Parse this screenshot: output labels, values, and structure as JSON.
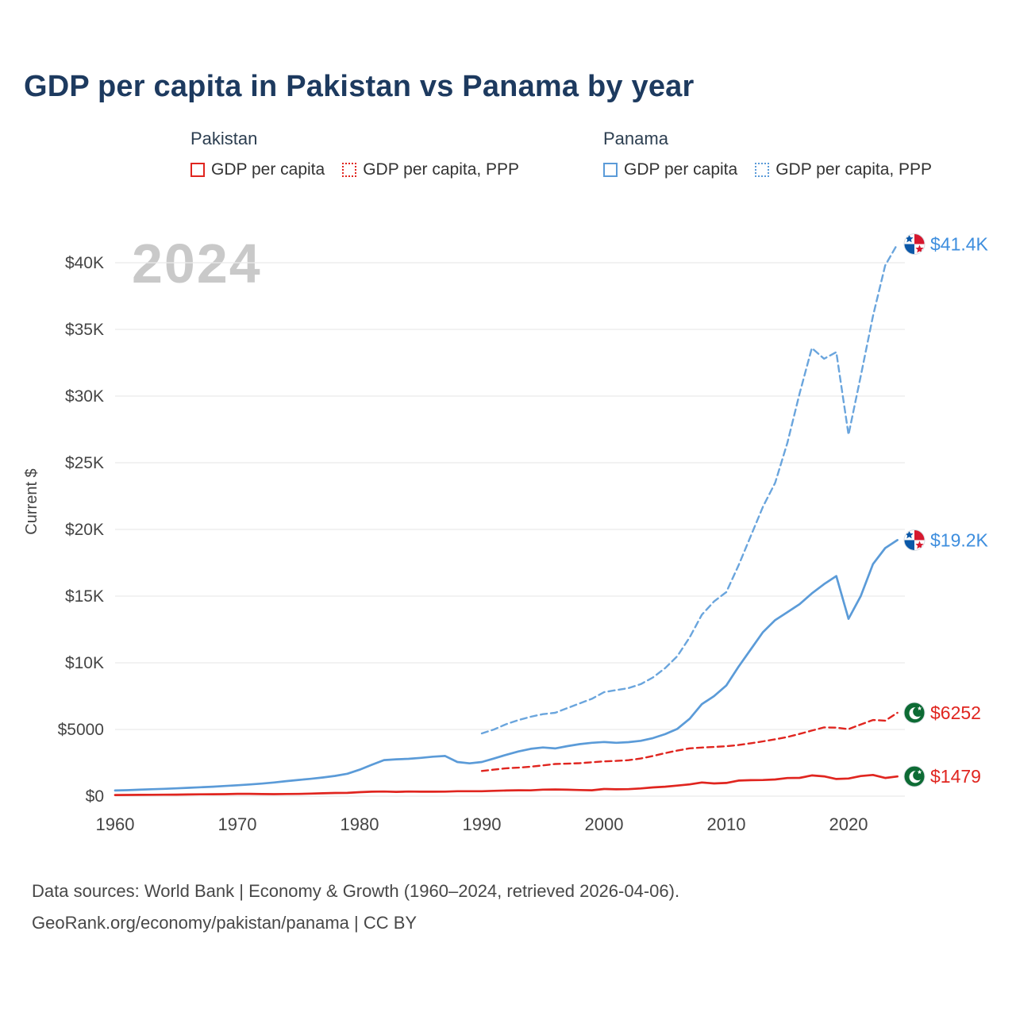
{
  "title": "GDP per capita in Pakistan vs Panama by year",
  "watermark": "2024",
  "legend": {
    "groups": [
      {
        "country": "Pakistan",
        "color": "#e0251f",
        "items": [
          {
            "label": "GDP per capita",
            "style": "solid"
          },
          {
            "label": "GDP per capita, PPP",
            "style": "dotted"
          }
        ]
      },
      {
        "country": "Panama",
        "color": "#5b9bd8",
        "items": [
          {
            "label": "GDP per capita",
            "style": "solid"
          },
          {
            "label": "GDP per capita, PPP",
            "style": "dotted"
          }
        ]
      }
    ]
  },
  "footer": {
    "line1": "Data sources: World Bank | Economy & Growth (1960–2024, retrieved 2026-04-06).",
    "line2": "GeoRank.org/economy/pakistan/panama | CC BY"
  },
  "chart_data": {
    "type": "line",
    "title": "GDP per capita in Pakistan vs Panama by year",
    "xlabel": "",
    "ylabel": "Current $",
    "xlim": [
      1960,
      2024
    ],
    "ylim": [
      0,
      42000
    ],
    "grid": "horizontal",
    "x_ticks": [
      {
        "v": 1960,
        "label": "1960"
      },
      {
        "v": 1970,
        "label": "1970"
      },
      {
        "v": 1980,
        "label": "1980"
      },
      {
        "v": 1990,
        "label": "1990"
      },
      {
        "v": 2000,
        "label": "2000"
      },
      {
        "v": 2010,
        "label": "2010"
      },
      {
        "v": 2020,
        "label": "2020"
      }
    ],
    "y_ticks": [
      {
        "v": 0,
        "label": "$0"
      },
      {
        "v": 5000,
        "label": "$5000"
      },
      {
        "v": 10000,
        "label": "$10K"
      },
      {
        "v": 15000,
        "label": "$15K"
      },
      {
        "v": 20000,
        "label": "$20K"
      },
      {
        "v": 25000,
        "label": "$25K"
      },
      {
        "v": 30000,
        "label": "$30K"
      },
      {
        "v": 35000,
        "label": "$35K"
      },
      {
        "v": 40000,
        "label": "$40K"
      }
    ],
    "series": [
      {
        "name": "Panama GDP per capita, PPP",
        "country": "Panama",
        "line_style": "dashed",
        "color": "#6aa5dd",
        "label_color": "#3e8ede",
        "flag": "panama",
        "end_label": "$41.4K",
        "start_year": 1990,
        "values": [
          4700,
          5000,
          5400,
          5700,
          5950,
          6150,
          6250,
          6600,
          6950,
          7300,
          7800,
          7950,
          8100,
          8400,
          8900,
          9600,
          10500,
          11900,
          13600,
          14600,
          15300,
          17300,
          19500,
          21700,
          23500,
          26500,
          30200,
          33600,
          32800,
          33300,
          27100,
          31500,
          36000,
          39800,
          41400
        ]
      },
      {
        "name": "Panama GDP per capita",
        "country": "Panama",
        "line_style": "solid",
        "color": "#5b9bd8",
        "label_color": "#3e8ede",
        "flag": "panama",
        "end_label": "$19.2K",
        "start_year": 1960,
        "values": [
          421,
          448,
          482,
          516,
          546,
          584,
          624,
          666,
          706,
          760,
          818,
          877,
          943,
          1021,
          1126,
          1213,
          1300,
          1400,
          1520,
          1680,
          1980,
          2350,
          2700,
          2760,
          2800,
          2870,
          2960,
          3010,
          2560,
          2460,
          2560,
          2820,
          3100,
          3350,
          3550,
          3650,
          3580,
          3750,
          3900,
          4000,
          4060,
          4000,
          4050,
          4150,
          4350,
          4650,
          5050,
          5800,
          6900,
          7500,
          8300,
          9700,
          11000,
          12300,
          13200,
          13800,
          14400,
          15200,
          15900,
          16500,
          13300,
          15000,
          17400,
          18600,
          19200
        ]
      },
      {
        "name": "Pakistan GDP per capita, PPP",
        "country": "Pakistan",
        "line_style": "dashed",
        "color": "#e0251f",
        "label_color": "#e0251f",
        "flag": "pakistan",
        "end_label": "$6252",
        "start_year": 1990,
        "values": [
          1887,
          1988,
          2087,
          2135,
          2208,
          2302,
          2409,
          2433,
          2469,
          2539,
          2608,
          2640,
          2694,
          2823,
          3012,
          3226,
          3419,
          3584,
          3644,
          3689,
          3744,
          3835,
          3966,
          4105,
          4262,
          4434,
          4668,
          4919,
          5155,
          5139,
          5025,
          5373,
          5711,
          5663,
          6252
        ]
      },
      {
        "name": "Pakistan GDP per capita",
        "country": "Pakistan",
        "line_style": "solid",
        "color": "#e0251f",
        "label_color": "#e0251f",
        "flag": "pakistan",
        "end_label": "$1479",
        "start_year": 1960,
        "values": [
          83,
          91,
          93,
          100,
          107,
          116,
          126,
          135,
          143,
          151,
          170,
          174,
          152,
          148,
          161,
          166,
          192,
          213,
          238,
          247,
          296,
          332,
          344,
          323,
          343,
          331,
          335,
          340,
          370,
          369,
          372,
          400,
          425,
          443,
          432,
          490,
          498,
          480,
          458,
          441,
          533,
          513,
          522,
          576,
          657,
          711,
          793,
          879,
          1021,
          955,
          987,
          1164,
          1198,
          1209,
          1251,
          1357,
          1368,
          1555,
          1482,
          1288,
          1322,
          1505,
          1590,
          1365,
          1479
        ]
      }
    ]
  }
}
